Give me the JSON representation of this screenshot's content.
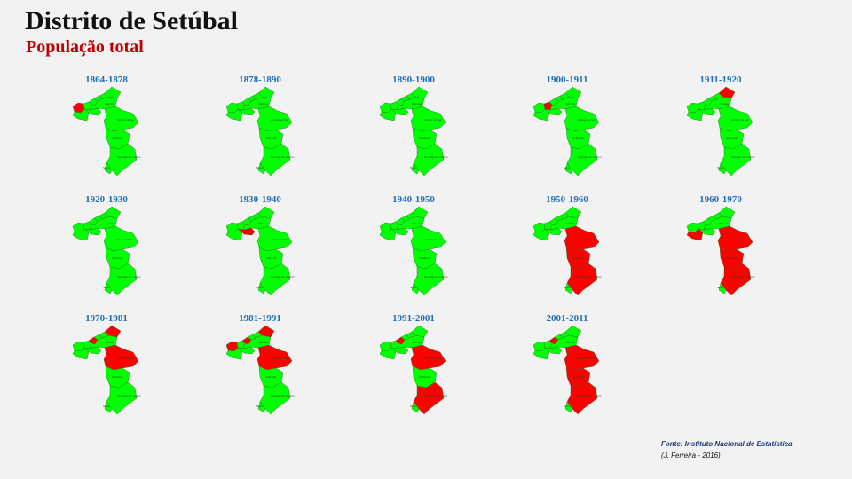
{
  "header": {
    "title": "Distrito de Setúbal",
    "subtitle": "População total"
  },
  "colors": {
    "increase": "#00ff00",
    "decrease": "#ff0000",
    "label": "#1f6fb5"
  },
  "map_text": {
    "alcacer": "Alcácer do Sal",
    "grandola": "Grândola",
    "santiago": "Santiago do Cacém",
    "palmela": "Palmela",
    "sines": "Sines"
  },
  "panels": [
    {
      "label": "1864-1878",
      "red": [
        "almada"
      ]
    },
    {
      "label": "1878-1890",
      "red": []
    },
    {
      "label": "1890-1900",
      "red": []
    },
    {
      "label": "1900-1911",
      "red": [
        "seixal"
      ]
    },
    {
      "label": "1911-1920",
      "red": [
        "alcochete"
      ]
    },
    {
      "label": "1920-1930",
      "red": []
    },
    {
      "label": "1930-1940",
      "red": [
        "setubal"
      ]
    },
    {
      "label": "1940-1950",
      "red": []
    },
    {
      "label": "1950-1960",
      "red": [
        "alcacer",
        "grandola",
        "santiago"
      ]
    },
    {
      "label": "1960-1970",
      "red": [
        "sesimbra",
        "alcacer",
        "grandola",
        "santiago"
      ]
    },
    {
      "label": "1970-1981",
      "red": [
        "barreiro",
        "alcochete",
        "alcacer"
      ]
    },
    {
      "label": "1981-1991",
      "red": [
        "almada",
        "barreiro",
        "alcochete",
        "alcacer"
      ]
    },
    {
      "label": "1991-2001",
      "red": [
        "barreiro",
        "alcacer",
        "santiago"
      ]
    },
    {
      "label": "2001-2011",
      "red": [
        "barreiro",
        "alcacer",
        "grandola",
        "santiago"
      ]
    }
  ],
  "footer": {
    "source": "Fonte: Instituto Nacional de Estatística",
    "author": "(J. Ferreira - 2016)"
  }
}
